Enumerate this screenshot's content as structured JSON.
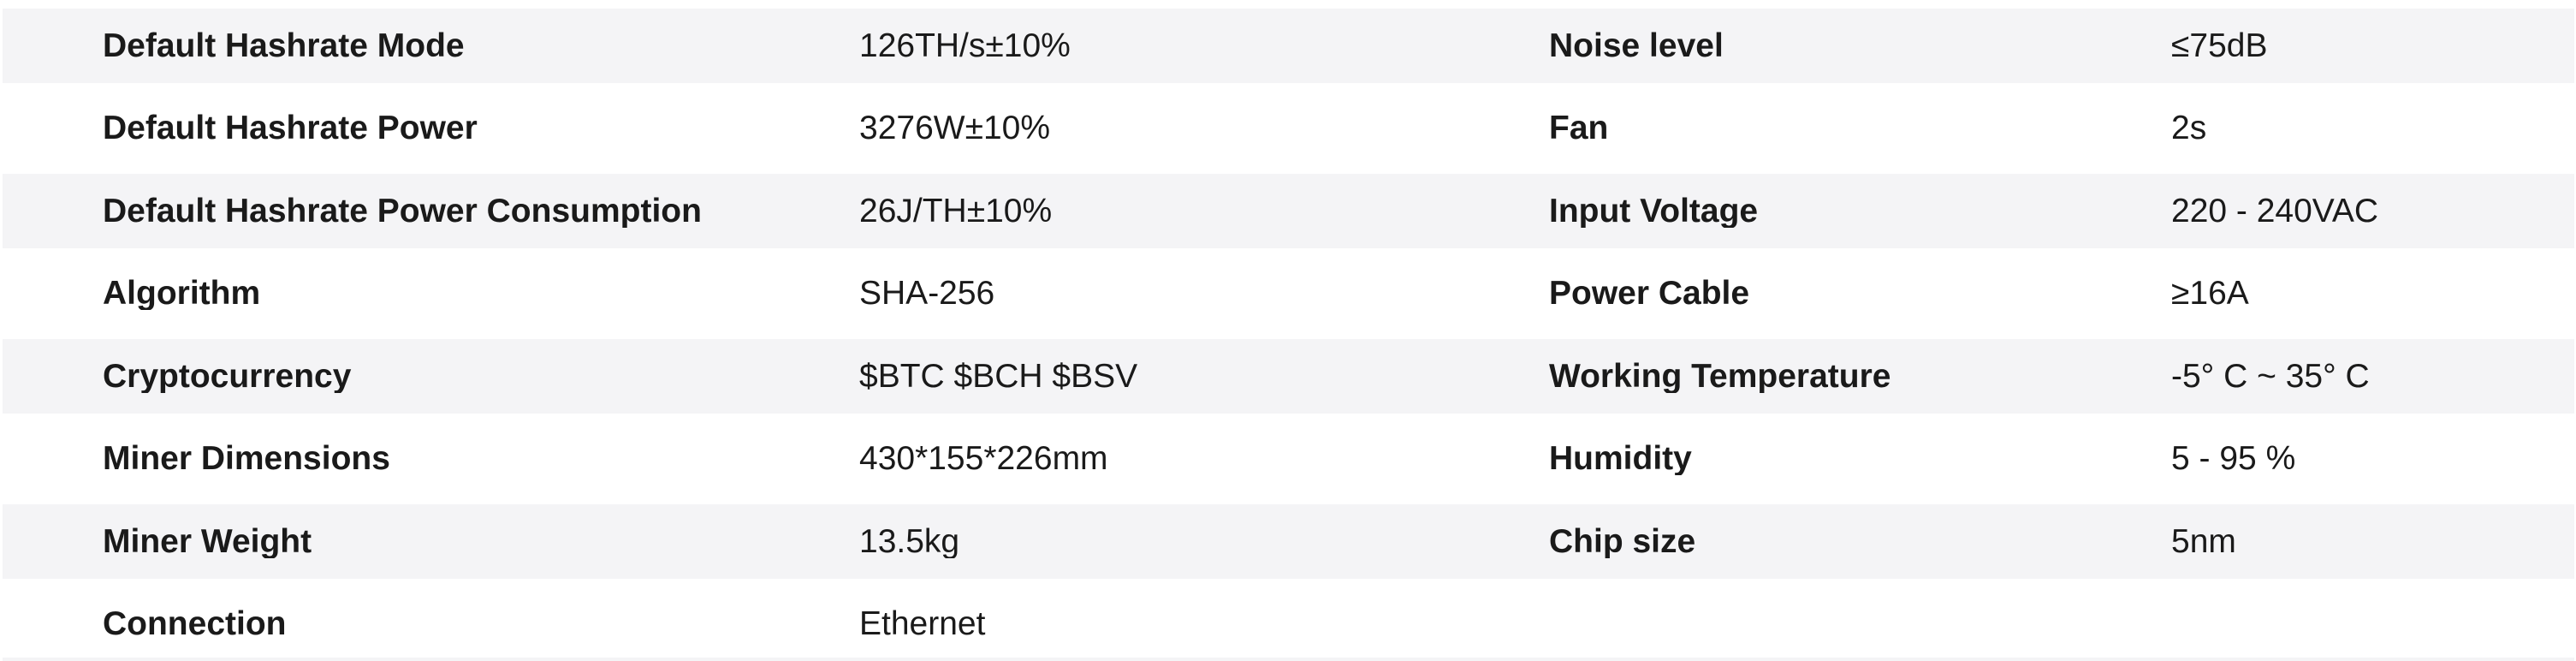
{
  "spec_table": {
    "colors": {
      "alt_row_bg": "#f4f4f6",
      "row_bg": "#ffffff",
      "text": "#1a1a1a"
    },
    "rows": [
      {
        "left": {
          "label": "Default Hashrate Mode",
          "value": "126TH/s±10%"
        },
        "right": {
          "label": "Noise level",
          "value": "≤75dB"
        }
      },
      {
        "left": {
          "label": "Default Hashrate Power",
          "value": "3276W±10%"
        },
        "right": {
          "label": "Fan",
          "value": "2s"
        }
      },
      {
        "left": {
          "label": "Default Hashrate Power Consumption",
          "value": "26J/TH±10%"
        },
        "right": {
          "label": "Input Voltage",
          "value": "220 - 240VAC"
        }
      },
      {
        "left": {
          "label": "Algorithm",
          "value": "SHA-256"
        },
        "right": {
          "label": "Power Cable",
          "value": "≥16A"
        }
      },
      {
        "left": {
          "label": "Cryptocurrency",
          "value": "$BTC $BCH $BSV"
        },
        "right": {
          "label": "Working Temperature",
          "value": "-5° C ~ 35° C"
        }
      },
      {
        "left": {
          "label": "Miner Dimensions",
          "value": "430*155*226mm"
        },
        "right": {
          "label": "Humidity",
          "value": "5 - 95 %"
        }
      },
      {
        "left": {
          "label": "Miner Weight",
          "value": "13.5kg"
        },
        "right": {
          "label": "Chip size",
          "value": "5nm"
        }
      },
      {
        "left": {
          "label": "Connection",
          "value": "Ethernet"
        },
        "right": {
          "label": "",
          "value": ""
        }
      }
    ]
  }
}
